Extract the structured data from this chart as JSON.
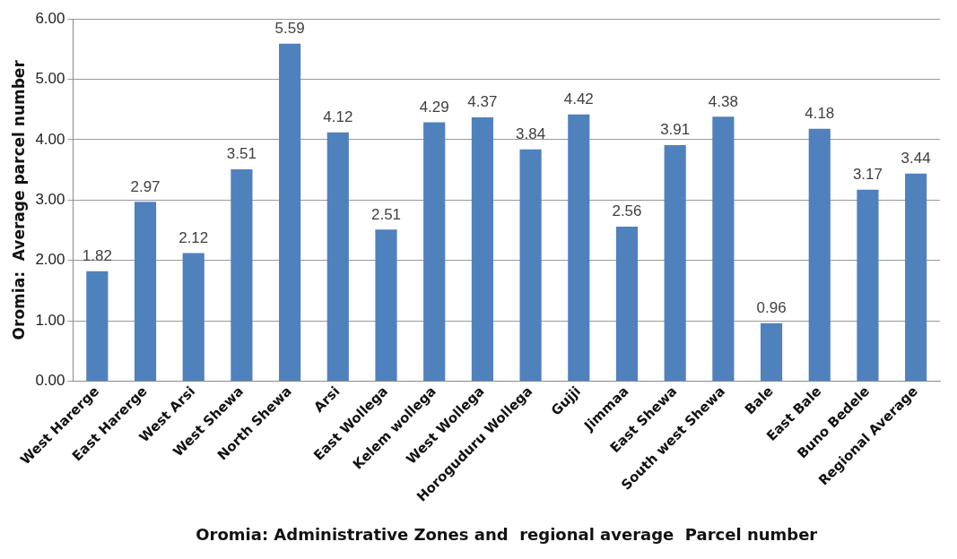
{
  "chart_data": {
    "type": "bar",
    "xlabel": "Oromia: Administrative Zones and  regional average  Parcel number",
    "ylabel": "Oromia:  Average parcel number",
    "categories": [
      "West Harerge",
      "East Harerge",
      "West Arsi",
      "West Shewa",
      "North Shewa",
      "Arsi",
      "East Wollega",
      "Kelem wollega",
      "West Wollega",
      "Horoguduru Wollega",
      "Gujji",
      "Jimmaa",
      "East Shewa",
      "South west Shewa",
      "Bale",
      "East Bale",
      "Buno Bedele",
      "Regional Average"
    ],
    "values": [
      1.82,
      2.97,
      2.12,
      3.51,
      5.59,
      4.12,
      2.51,
      4.29,
      4.37,
      3.84,
      4.42,
      2.56,
      3.91,
      4.38,
      0.96,
      4.18,
      3.17,
      3.44
    ],
    "color": "#4f81bd",
    "ylim": [
      0,
      6
    ],
    "yticks": [
      {
        "value": 0,
        "label": "0.00"
      },
      {
        "value": 1,
        "label": "1.00"
      },
      {
        "value": 2,
        "label": "2.00"
      },
      {
        "value": 3,
        "label": "3.00"
      },
      {
        "value": 4,
        "label": "4.00"
      },
      {
        "value": 5,
        "label": "5.00"
      },
      {
        "value": 6,
        "label": "6.00"
      }
    ],
    "grid": "y",
    "data_labels": true,
    "legend": false
  }
}
